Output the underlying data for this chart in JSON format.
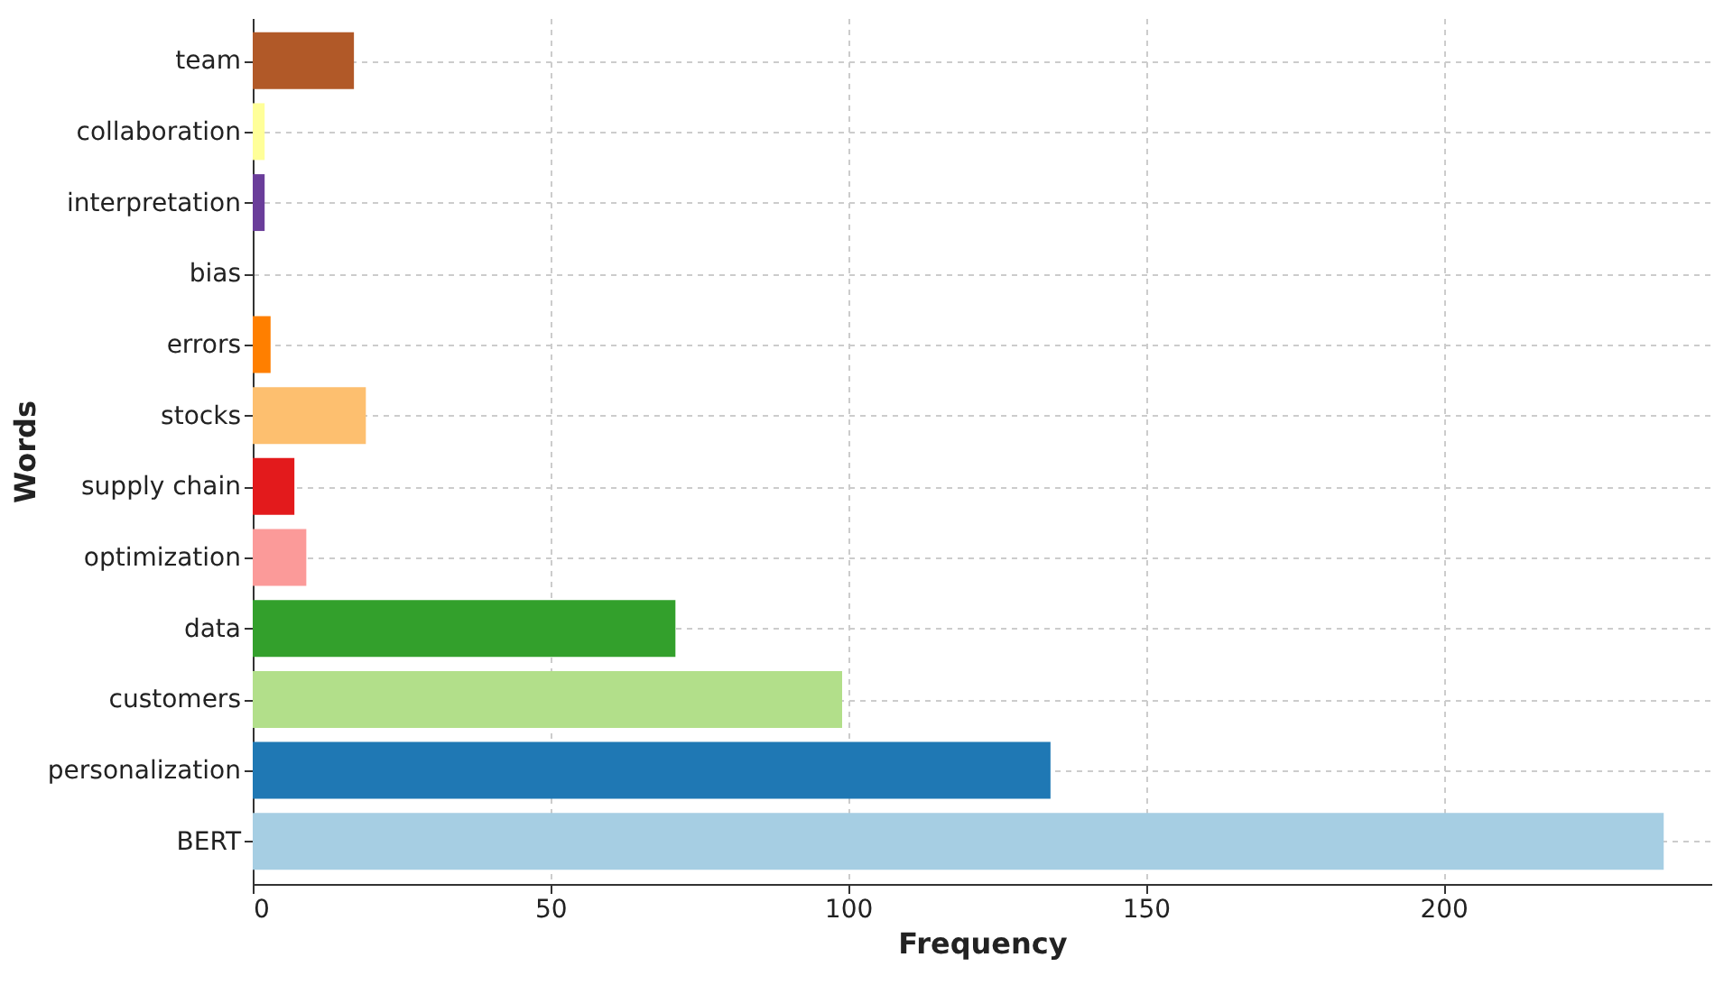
{
  "chart_data": {
    "type": "bar",
    "orientation": "horizontal",
    "xlabel": "Frequency",
    "ylabel": "Words",
    "categories": [
      "team",
      "collaboration",
      "interpretation",
      "bias",
      "errors",
      "stocks",
      "supply chain",
      "optimization",
      "data",
      "customers",
      "personalization",
      "BERT"
    ],
    "values": [
      17,
      2,
      2,
      0,
      3,
      19,
      7,
      9,
      71,
      99,
      134,
      237
    ],
    "colors": [
      "#b15928",
      "#ffff99",
      "#6a3d9a",
      "#cab2d6",
      "#ff7f00",
      "#fdbf6f",
      "#e31a1c",
      "#fb9a99",
      "#33a02c",
      "#b2df8a",
      "#1f78b4",
      "#a6cee3"
    ],
    "xlim": [
      0,
      245
    ],
    "xticks": [
      0,
      50,
      100,
      150,
      200
    ],
    "grid": true
  }
}
